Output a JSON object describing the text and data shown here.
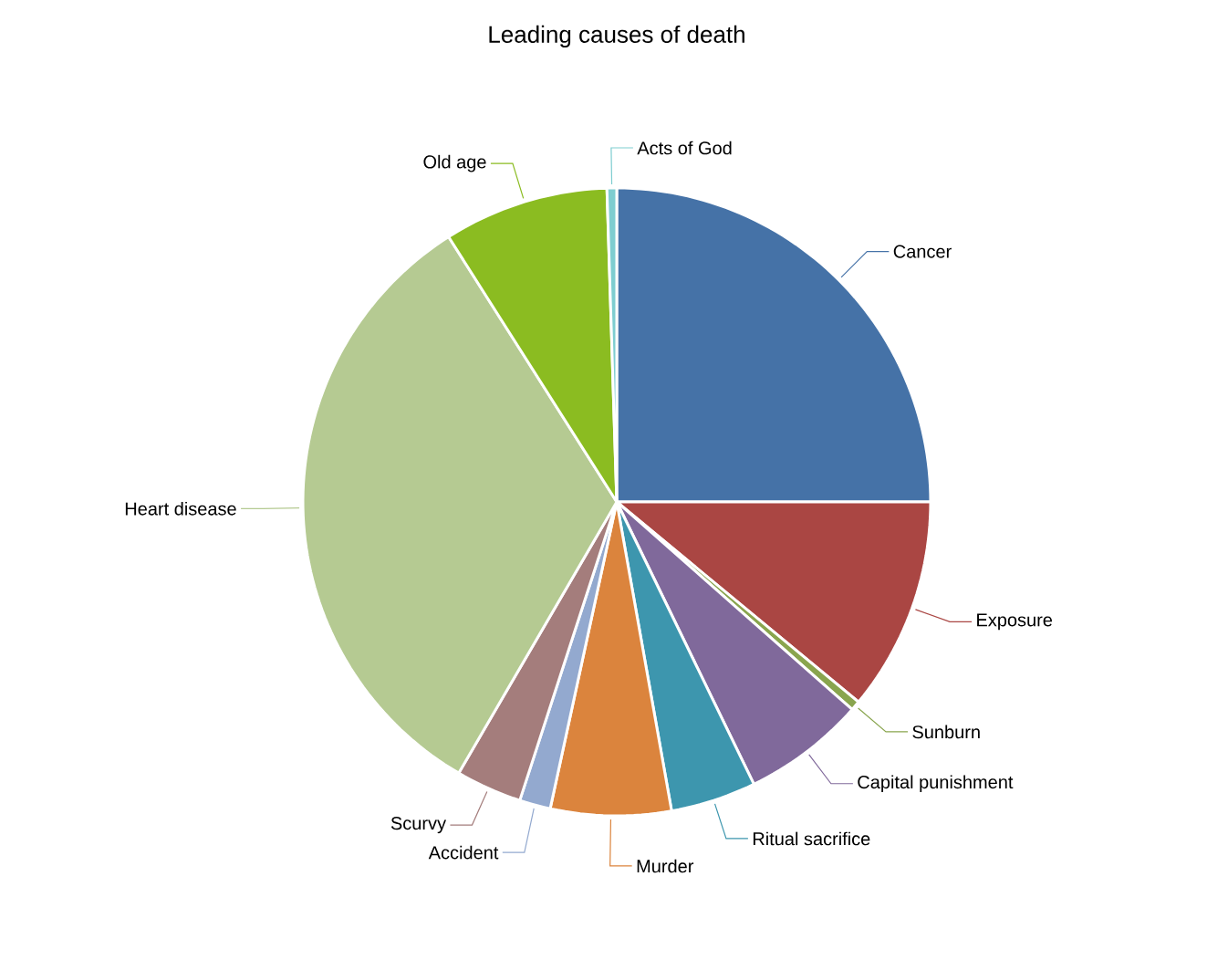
{
  "chart_data": {
    "type": "pie",
    "title": "Leading causes of death",
    "categories": [
      "Cancer",
      "Exposure",
      "Sunburn",
      "Capital punishment",
      "Ritual sacrifice",
      "Murder",
      "Accident",
      "Scurvy",
      "Heart disease",
      "Old age",
      "Acts of God"
    ],
    "values": [
      25,
      11,
      0.5,
      6.3,
      4.4,
      6.2,
      1.6,
      3.4,
      32.6,
      8.5,
      0.5
    ],
    "colors": [
      "#4572a7",
      "#aa4643",
      "#89a54e",
      "#80699b",
      "#3d96ae",
      "#db843d",
      "#93a9cf",
      "#a47d7c",
      "#b5ca92",
      "#8bbc21",
      "#7ecdd0"
    ]
  }
}
